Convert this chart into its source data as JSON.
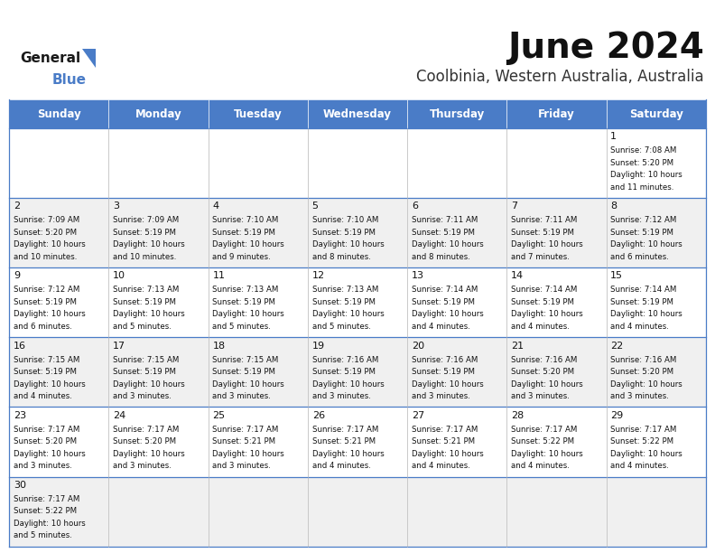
{
  "title": "June 2024",
  "subtitle": "Coolbinia, Western Australia, Australia",
  "header_color": "#4a7cc7",
  "header_text_color": "#ffffff",
  "days_of_week": [
    "Sunday",
    "Monday",
    "Tuesday",
    "Wednesday",
    "Thursday",
    "Friday",
    "Saturday"
  ],
  "bg_color": "#ffffff",
  "alt_row_color": "#f0f0f0",
  "border_color": "#4a7cc7",
  "light_border": "#c0c0c0",
  "calendar": [
    [
      null,
      null,
      null,
      null,
      null,
      null,
      {
        "day": 1,
        "sunrise": "7:08 AM",
        "sunset": "5:20 PM",
        "daylight": "10 hours and 11 minutes."
      }
    ],
    [
      {
        "day": 2,
        "sunrise": "7:09 AM",
        "sunset": "5:20 PM",
        "daylight": "10 hours and 10 minutes."
      },
      {
        "day": 3,
        "sunrise": "7:09 AM",
        "sunset": "5:19 PM",
        "daylight": "10 hours and 10 minutes."
      },
      {
        "day": 4,
        "sunrise": "7:10 AM",
        "sunset": "5:19 PM",
        "daylight": "10 hours and 9 minutes."
      },
      {
        "day": 5,
        "sunrise": "7:10 AM",
        "sunset": "5:19 PM",
        "daylight": "10 hours and 8 minutes."
      },
      {
        "day": 6,
        "sunrise": "7:11 AM",
        "sunset": "5:19 PM",
        "daylight": "10 hours and 8 minutes."
      },
      {
        "day": 7,
        "sunrise": "7:11 AM",
        "sunset": "5:19 PM",
        "daylight": "10 hours and 7 minutes."
      },
      {
        "day": 8,
        "sunrise": "7:12 AM",
        "sunset": "5:19 PM",
        "daylight": "10 hours and 6 minutes."
      }
    ],
    [
      {
        "day": 9,
        "sunrise": "7:12 AM",
        "sunset": "5:19 PM",
        "daylight": "10 hours and 6 minutes."
      },
      {
        "day": 10,
        "sunrise": "7:13 AM",
        "sunset": "5:19 PM",
        "daylight": "10 hours and 5 minutes."
      },
      {
        "day": 11,
        "sunrise": "7:13 AM",
        "sunset": "5:19 PM",
        "daylight": "10 hours and 5 minutes."
      },
      {
        "day": 12,
        "sunrise": "7:13 AM",
        "sunset": "5:19 PM",
        "daylight": "10 hours and 5 minutes."
      },
      {
        "day": 13,
        "sunrise": "7:14 AM",
        "sunset": "5:19 PM",
        "daylight": "10 hours and 4 minutes."
      },
      {
        "day": 14,
        "sunrise": "7:14 AM",
        "sunset": "5:19 PM",
        "daylight": "10 hours and 4 minutes."
      },
      {
        "day": 15,
        "sunrise": "7:14 AM",
        "sunset": "5:19 PM",
        "daylight": "10 hours and 4 minutes."
      }
    ],
    [
      {
        "day": 16,
        "sunrise": "7:15 AM",
        "sunset": "5:19 PM",
        "daylight": "10 hours and 4 minutes."
      },
      {
        "day": 17,
        "sunrise": "7:15 AM",
        "sunset": "5:19 PM",
        "daylight": "10 hours and 3 minutes."
      },
      {
        "day": 18,
        "sunrise": "7:15 AM",
        "sunset": "5:19 PM",
        "daylight": "10 hours and 3 minutes."
      },
      {
        "day": 19,
        "sunrise": "7:16 AM",
        "sunset": "5:19 PM",
        "daylight": "10 hours and 3 minutes."
      },
      {
        "day": 20,
        "sunrise": "7:16 AM",
        "sunset": "5:19 PM",
        "daylight": "10 hours and 3 minutes."
      },
      {
        "day": 21,
        "sunrise": "7:16 AM",
        "sunset": "5:20 PM",
        "daylight": "10 hours and 3 minutes."
      },
      {
        "day": 22,
        "sunrise": "7:16 AM",
        "sunset": "5:20 PM",
        "daylight": "10 hours and 3 minutes."
      }
    ],
    [
      {
        "day": 23,
        "sunrise": "7:17 AM",
        "sunset": "5:20 PM",
        "daylight": "10 hours and 3 minutes."
      },
      {
        "day": 24,
        "sunrise": "7:17 AM",
        "sunset": "5:20 PM",
        "daylight": "10 hours and 3 minutes."
      },
      {
        "day": 25,
        "sunrise": "7:17 AM",
        "sunset": "5:21 PM",
        "daylight": "10 hours and 3 minutes."
      },
      {
        "day": 26,
        "sunrise": "7:17 AM",
        "sunset": "5:21 PM",
        "daylight": "10 hours and 4 minutes."
      },
      {
        "day": 27,
        "sunrise": "7:17 AM",
        "sunset": "5:21 PM",
        "daylight": "10 hours and 4 minutes."
      },
      {
        "day": 28,
        "sunrise": "7:17 AM",
        "sunset": "5:22 PM",
        "daylight": "10 hours and 4 minutes."
      },
      {
        "day": 29,
        "sunrise": "7:17 AM",
        "sunset": "5:22 PM",
        "daylight": "10 hours and 4 minutes."
      }
    ],
    [
      {
        "day": 30,
        "sunrise": "7:17 AM",
        "sunset": "5:22 PM",
        "daylight": "10 hours and 5 minutes."
      },
      null,
      null,
      null,
      null,
      null,
      null
    ]
  ],
  "title_fontsize": 28,
  "subtitle_fontsize": 12,
  "day_header_fontsize": 8.5,
  "day_num_fontsize": 8,
  "cell_fontsize": 6.2,
  "logo_general_fontsize": 11,
  "logo_blue_fontsize": 11
}
